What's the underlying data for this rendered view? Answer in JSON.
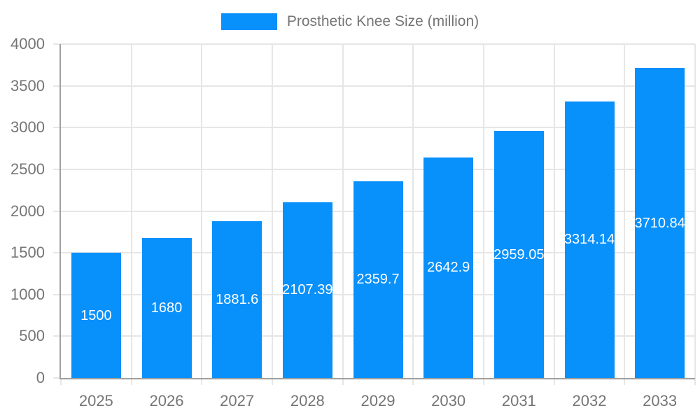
{
  "chart_data": {
    "type": "bar",
    "title": "Prosthetic Knee Size (million)",
    "legend": {
      "label": "Prosthetic Knee Size (million)",
      "position": "top-center"
    },
    "categories": [
      "2025",
      "2026",
      "2027",
      "2028",
      "2029",
      "2030",
      "2031",
      "2032",
      "2033"
    ],
    "values": [
      1500,
      1680,
      1881.6,
      2107.39,
      2359.7,
      2642.9,
      2959.05,
      3314.14,
      3710.84
    ],
    "value_labels": [
      "1500",
      "1680",
      "1881.6",
      "2107.39",
      "2359.7",
      "2642.9",
      "2959.05",
      "3314.14",
      "3710.84"
    ],
    "xlabel": "",
    "ylabel": "",
    "ylim": [
      0,
      4000
    ],
    "ytick_step": 500,
    "yticks": [
      0,
      500,
      1000,
      1500,
      2000,
      2500,
      3000,
      3500,
      4000
    ],
    "grid": true,
    "value_labels_position": "center-of-bar",
    "colors": {
      "bar": "#0890fb",
      "axis_text": "#757575",
      "axis_line": "#a0a0a0",
      "gridline": "#e6e6e6",
      "value_label": "#ffffff",
      "background": "#ffffff"
    }
  }
}
